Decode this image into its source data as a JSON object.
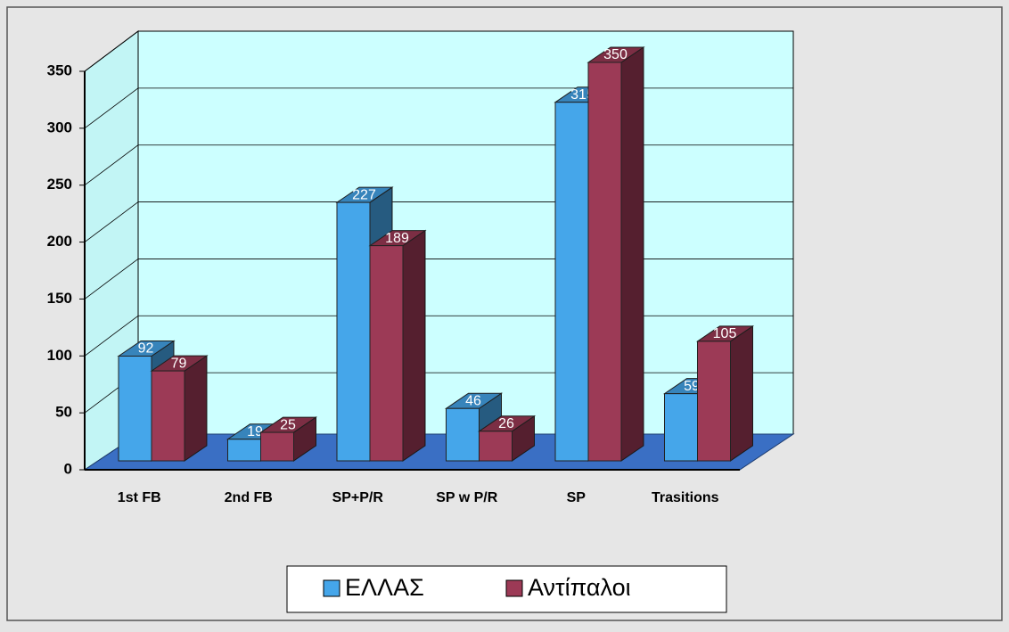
{
  "chart_data": {
    "type": "bar3d",
    "categories": [
      "1st FB",
      "2nd FB",
      "SP+P/R",
      "SP w P/R",
      "SP",
      "Trasitions"
    ],
    "series": [
      {
        "name": "ΕΛΛΑΣ",
        "color": "#45a6ea",
        "values": [
          92,
          19,
          227,
          46,
          315,
          59
        ]
      },
      {
        "name": "Αντίπαλοι",
        "color": "#9c3a56",
        "values": [
          79,
          25,
          189,
          26,
          350,
          105
        ]
      }
    ],
    "ylim": [
      0,
      350
    ],
    "yticks": [
      0,
      50,
      100,
      150,
      200,
      250,
      300,
      350
    ],
    "grid": true
  }
}
